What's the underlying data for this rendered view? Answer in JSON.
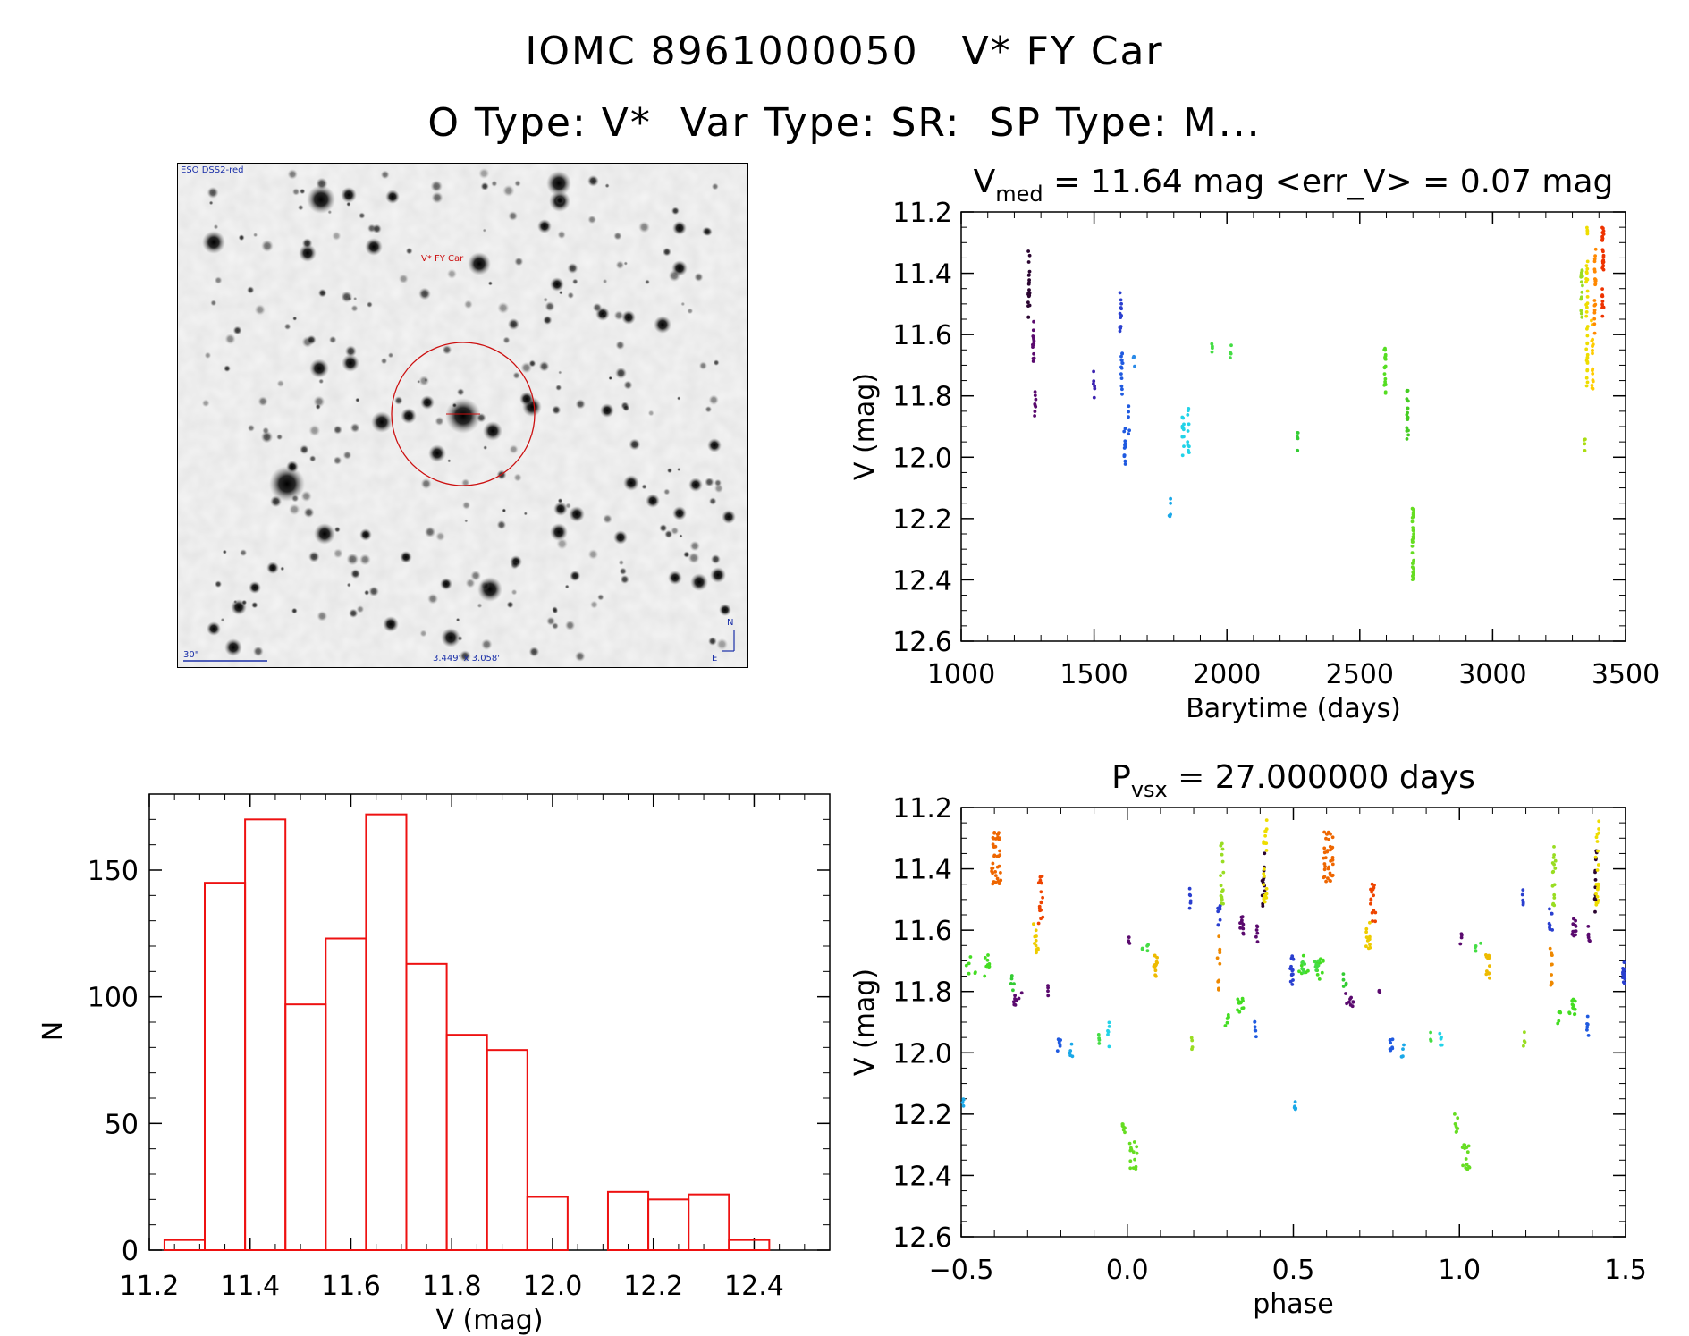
{
  "header": {
    "title_line1": "IOMC 8961000050   V* FY Car",
    "title_line2": "O Type: V*  Var Type: SR:  SP Type: M..."
  },
  "sky_image": {
    "survey_label": "ESO DSS2-red",
    "target_label": "V* FY Car",
    "scale_label": "30\"",
    "fov_label": "3.449' x 3.058'",
    "north_label": "N",
    "east_label": "E"
  },
  "colors": {
    "histogram": "#ee1111",
    "marker_circle": "#cc1010",
    "sky_text": "#1a2fa8"
  },
  "chart_data": [
    {
      "id": "lightcurve",
      "type": "scatter",
      "title_main": "V",
      "title_sub": "med",
      "title_rest": " = 11.64 mag <err_V> = 0.07 mag",
      "xlabel": "Barytime (days)",
      "ylabel": "V (mag)",
      "xlim": [
        1000,
        3500
      ],
      "ylim": [
        12.6,
        11.2
      ],
      "xticks": [
        1000,
        1500,
        2000,
        2500,
        3000,
        3500
      ],
      "xtick_labels": [
        "1000",
        "1500",
        "2000",
        "2500",
        "3000",
        "3500"
      ],
      "yticks": [
        11.2,
        11.4,
        11.6,
        11.8,
        12.0,
        12.2,
        12.4,
        12.6
      ],
      "ytick_labels": [
        "11.2",
        "11.4",
        "11.6",
        "11.8",
        "12.0",
        "12.2",
        "12.4",
        "12.6"
      ],
      "groups": [
        {
          "x": 1255,
          "ymin": 11.32,
          "ymax": 11.55,
          "color": "#2a0530",
          "n": 22
        },
        {
          "x": 1272,
          "ymin": 11.55,
          "ymax": 11.7,
          "color": "#5a0a6e",
          "n": 14
        },
        {
          "x": 1278,
          "ymin": 11.78,
          "ymax": 11.87,
          "color": "#5a0a6e",
          "n": 8
        },
        {
          "x": 1500,
          "ymin": 11.72,
          "ymax": 11.83,
          "color": "#3b22b0",
          "n": 6
        },
        {
          "x": 1600,
          "ymin": 11.45,
          "ymax": 11.6,
          "color": "#2a3fcf",
          "n": 14
        },
        {
          "x": 1605,
          "ymin": 11.65,
          "ymax": 11.8,
          "color": "#1f5ae0",
          "n": 14
        },
        {
          "x": 1615,
          "ymin": 11.9,
          "ymax": 12.03,
          "color": "#1f5ae0",
          "n": 12
        },
        {
          "x": 1630,
          "ymin": 11.82,
          "ymax": 11.98,
          "color": "#1f5ae0",
          "n": 5
        },
        {
          "x": 1650,
          "ymin": 11.64,
          "ymax": 11.72,
          "color": "#2a8ae8",
          "n": 4
        },
        {
          "x": 1785,
          "ymin": 12.13,
          "ymax": 12.2,
          "color": "#1aa8e8",
          "n": 5
        },
        {
          "x": 1835,
          "ymin": 11.86,
          "ymax": 12.0,
          "color": "#22d3e8",
          "n": 12
        },
        {
          "x": 1855,
          "ymin": 11.84,
          "ymax": 12.02,
          "color": "#22d3e8",
          "n": 10
        },
        {
          "x": 1945,
          "ymin": 11.62,
          "ymax": 11.66,
          "color": "#44dd44",
          "n": 4
        },
        {
          "x": 2015,
          "ymin": 11.63,
          "ymax": 11.68,
          "color": "#44dd44",
          "n": 4
        },
        {
          "x": 2265,
          "ymin": 11.92,
          "ymax": 11.98,
          "color": "#33cc33",
          "n": 5
        },
        {
          "x": 2595,
          "ymin": 11.64,
          "ymax": 11.8,
          "color": "#55dd22",
          "n": 20
        },
        {
          "x": 2680,
          "ymin": 11.78,
          "ymax": 11.95,
          "color": "#44cc22",
          "n": 18
        },
        {
          "x": 2700,
          "ymin": 12.16,
          "ymax": 12.4,
          "color": "#66dd22",
          "n": 28
        },
        {
          "x": 3335,
          "ymin": 11.38,
          "ymax": 11.55,
          "color": "#99dd22",
          "n": 14
        },
        {
          "x": 3345,
          "ymin": 11.93,
          "ymax": 12.0,
          "color": "#aadd11",
          "n": 4
        },
        {
          "x": 3355,
          "ymin": 11.25,
          "ymax": 11.82,
          "color": "#eedd00",
          "n": 36
        },
        {
          "x": 3375,
          "ymin": 11.55,
          "ymax": 11.8,
          "color": "#ffcc00",
          "n": 18
        },
        {
          "x": 3385,
          "ymin": 11.32,
          "ymax": 11.62,
          "color": "#ff8800",
          "n": 20
        },
        {
          "x": 3415,
          "ymin": 11.25,
          "ymax": 11.55,
          "color": "#ee3300",
          "n": 32
        }
      ]
    },
    {
      "id": "histogram",
      "type": "bar",
      "xlabel": "V (mag)",
      "ylabel": "N",
      "xlim": [
        11.2,
        12.55
      ],
      "ylim": [
        0,
        180
      ],
      "bin_width": 0.08,
      "bin_starts": [
        11.23,
        11.31,
        11.39,
        11.47,
        11.55,
        11.63,
        11.71,
        11.79,
        11.87,
        11.95,
        12.03,
        12.11,
        12.19,
        12.27,
        12.35,
        12.43
      ],
      "values": [
        4,
        145,
        170,
        97,
        123,
        172,
        113,
        85,
        79,
        21,
        0,
        23,
        20,
        22,
        4,
        0
      ],
      "xticks": [
        11.2,
        11.4,
        11.6,
        11.8,
        12.0,
        12.2,
        12.4
      ],
      "xtick_labels": [
        "11.2",
        "11.4",
        "11.6",
        "11.8",
        "12.0",
        "12.2",
        "12.4"
      ],
      "yticks": [
        0,
        50,
        100,
        150
      ],
      "ytick_labels": [
        "0",
        "50",
        "100",
        "150"
      ]
    },
    {
      "id": "phased",
      "type": "scatter",
      "title_main": "P",
      "title_sub": "vsx",
      "title_rest": " = 27.000000 days",
      "xlabel": "phase",
      "ylabel": "V (mag)",
      "xlim": [
        -0.5,
        1.5
      ],
      "ylim": [
        12.6,
        11.2
      ],
      "xticks": [
        -0.5,
        0.0,
        0.5,
        1.0,
        1.5
      ],
      "xtick_labels": [
        "−0.5",
        "0.0",
        "0.5",
        "1.0",
        "1.5"
      ],
      "yticks": [
        11.2,
        11.4,
        11.6,
        11.8,
        12.0,
        12.2,
        12.4,
        12.6
      ],
      "ytick_labels": [
        "11.2",
        "11.4",
        "11.6",
        "11.8",
        "12.0",
        "12.2",
        "12.4",
        "12.6"
      ],
      "groups": [
        {
          "x": -0.395,
          "ymin": 11.28,
          "ymax": 11.45,
          "color": "#ee6600",
          "n": 40,
          "spread": 0.03
        },
        {
          "x": -0.26,
          "ymin": 11.42,
          "ymax": 11.58,
          "color": "#ee4400",
          "n": 16,
          "spread": 0.015
        },
        {
          "x": -0.275,
          "ymin": 11.57,
          "ymax": 11.68,
          "color": "#eecc00",
          "n": 12,
          "spread": 0.015
        },
        {
          "x": -0.47,
          "ymin": 11.68,
          "ymax": 11.75,
          "color": "#44dd22",
          "n": 6,
          "spread": 0.03
        },
        {
          "x": -0.42,
          "ymin": 11.68,
          "ymax": 11.76,
          "color": "#44dd22",
          "n": 10,
          "spread": 0.02
        },
        {
          "x": -0.345,
          "ymin": 11.73,
          "ymax": 11.8,
          "color": "#33cc33",
          "n": 5,
          "spread": 0.01
        },
        {
          "x": -0.33,
          "ymin": 11.8,
          "ymax": 11.85,
          "color": "#5a0a6e",
          "n": 10,
          "spread": 0.025
        },
        {
          "x": -0.24,
          "ymin": 11.77,
          "ymax": 11.82,
          "color": "#5a0a6e",
          "n": 4,
          "spread": 0.005
        },
        {
          "x": -0.205,
          "ymin": 11.95,
          "ymax": 12.02,
          "color": "#1f5ae0",
          "n": 8,
          "spread": 0.01
        },
        {
          "x": -0.17,
          "ymin": 11.97,
          "ymax": 12.02,
          "color": "#1aa8e8",
          "n": 5,
          "spread": 0.01
        },
        {
          "x": -0.495,
          "ymin": 12.15,
          "ymax": 12.19,
          "color": "#1aa8e8",
          "n": 4,
          "spread": 0.005
        },
        {
          "x": -0.085,
          "ymin": 11.93,
          "ymax": 11.97,
          "color": "#44dd44",
          "n": 4,
          "spread": 0.005
        },
        {
          "x": -0.055,
          "ymin": 11.9,
          "ymax": 11.98,
          "color": "#22d3e8",
          "n": 6,
          "spread": 0.008
        },
        {
          "x": -0.01,
          "ymin": 12.2,
          "ymax": 12.26,
          "color": "#66dd22",
          "n": 8,
          "spread": 0.01
        },
        {
          "x": 0.02,
          "ymin": 12.29,
          "ymax": 12.38,
          "color": "#66dd22",
          "n": 14,
          "spread": 0.025
        },
        {
          "x": 0.005,
          "ymin": 11.61,
          "ymax": 11.65,
          "color": "#5a0a6e",
          "n": 4,
          "spread": 0.005
        },
        {
          "x": 0.055,
          "ymin": 11.63,
          "ymax": 11.67,
          "color": "#44dd44",
          "n": 5,
          "spread": 0.02
        },
        {
          "x": 0.085,
          "ymin": 11.68,
          "ymax": 11.76,
          "color": "#eebb00",
          "n": 14,
          "spread": 0.012
        },
        {
          "x": 0.19,
          "ymin": 11.46,
          "ymax": 11.53,
          "color": "#2a3fcf",
          "n": 6,
          "spread": 0.005
        },
        {
          "x": 0.195,
          "ymin": 11.93,
          "ymax": 11.99,
          "color": "#99dd22",
          "n": 4,
          "spread": 0.005
        },
        {
          "x": 0.275,
          "ymin": 11.52,
          "ymax": 11.6,
          "color": "#2a3fcf",
          "n": 8,
          "spread": 0.01
        },
        {
          "x": 0.285,
          "ymin": 11.3,
          "ymax": 11.52,
          "color": "#99dd22",
          "n": 16,
          "spread": 0.01
        },
        {
          "x": 0.275,
          "ymin": 11.62,
          "ymax": 11.8,
          "color": "#ee8800",
          "n": 10,
          "spread": 0.008
        },
        {
          "x": 0.3,
          "ymin": 11.86,
          "ymax": 11.92,
          "color": "#44dd22",
          "n": 6,
          "spread": 0.01
        },
        {
          "x": 0.34,
          "ymin": 11.82,
          "ymax": 11.88,
          "color": "#44dd22",
          "n": 12,
          "spread": 0.02
        },
        {
          "x": 0.345,
          "ymin": 11.55,
          "ymax": 11.62,
          "color": "#5a0a6e",
          "n": 12,
          "spread": 0.012
        },
        {
          "x": 0.39,
          "ymin": 11.58,
          "ymax": 11.64,
          "color": "#5a0a6e",
          "n": 6,
          "spread": 0.005
        },
        {
          "x": 0.385,
          "ymin": 11.88,
          "ymax": 11.95,
          "color": "#1f5ae0",
          "n": 6,
          "spread": 0.008
        },
        {
          "x": 0.41,
          "ymin": 11.33,
          "ymax": 11.55,
          "color": "#2a0530",
          "n": 14,
          "spread": 0.008
        },
        {
          "x": 0.415,
          "ymin": 11.24,
          "ymax": 11.52,
          "color": "#eedd00",
          "n": 22,
          "spread": 0.01
        },
        {
          "x": 0.495,
          "ymin": 11.68,
          "ymax": 11.78,
          "color": "#2a3fcf",
          "n": 14,
          "spread": 0.01
        },
        {
          "x": 0.53,
          "ymin": 11.7,
          "ymax": 11.76,
          "color": "#44dd44",
          "n": 6,
          "spread": 0.008
        },
        {
          "x": 0.57,
          "ymin": 11.7,
          "ymax": 11.75,
          "color": "#44dd44",
          "n": 8,
          "spread": 0.012
        },
        {
          "x": 0.505,
          "ymin": 12.16,
          "ymax": 12.19,
          "color": "#1aa8e8",
          "n": 4,
          "spread": 0.003
        }
      ],
      "repeat_offset": 1.0
    }
  ]
}
